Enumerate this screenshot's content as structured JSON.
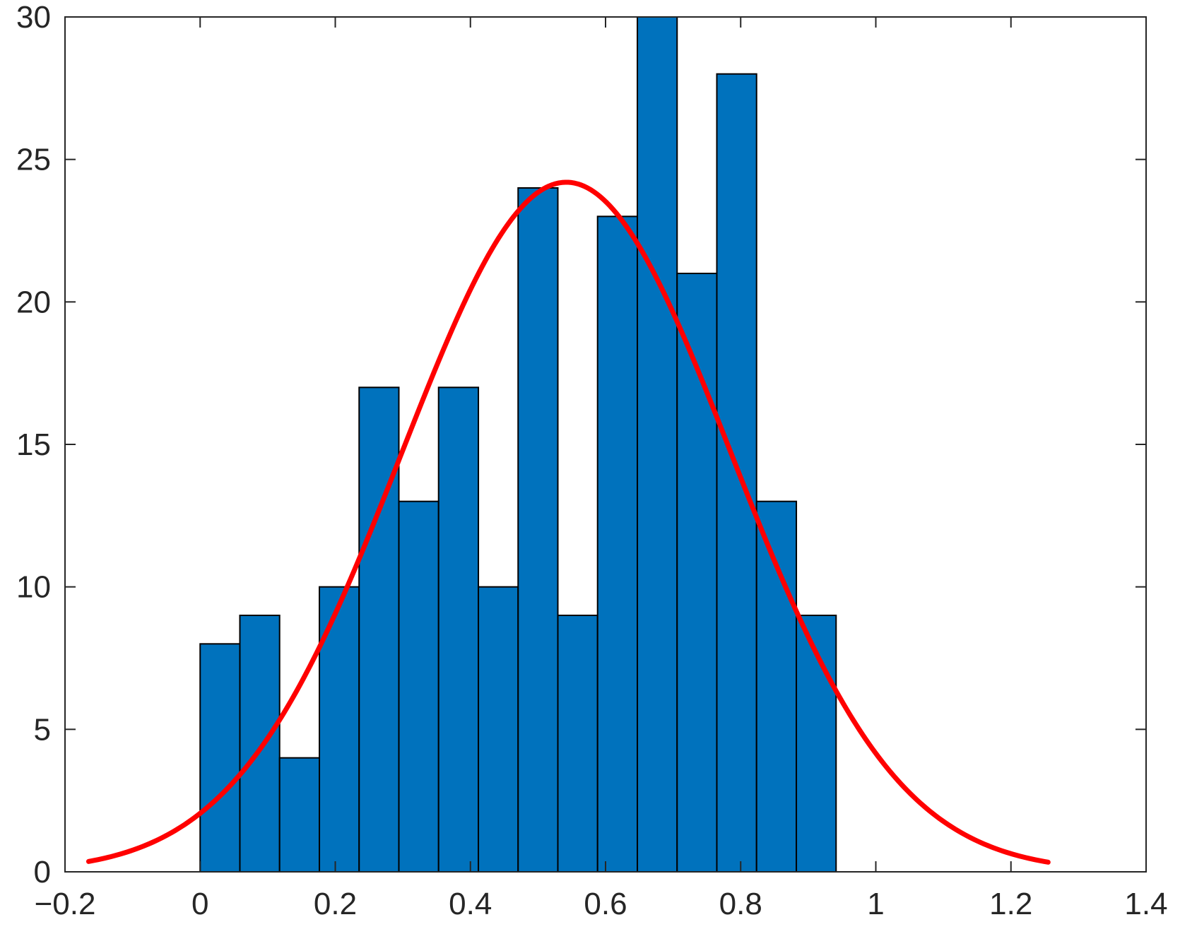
{
  "chart_data": {
    "type": "bar",
    "subtype": "histogram-with-fitted-normal-curve",
    "title": "",
    "xlabel": "",
    "ylabel": "",
    "xlim": [
      -0.2,
      1.4
    ],
    "ylim": [
      0,
      30
    ],
    "grid": false,
    "xticks": [
      -0.2,
      0,
      0.2,
      0.4,
      0.6,
      0.8,
      1,
      1.2,
      1.4
    ],
    "xtick_labels": [
      "−0.2",
      "0",
      "0.2",
      "0.4",
      "0.6",
      "0.8",
      "1",
      "1.2",
      "1.4"
    ],
    "yticks": [
      0,
      5,
      10,
      15,
      20,
      25,
      30
    ],
    "ytick_labels": [
      "0",
      "5",
      "10",
      "15",
      "20",
      "25",
      "30"
    ],
    "bin_edges": [
      0,
      0.0588,
      0.1176,
      0.1765,
      0.2353,
      0.2941,
      0.3529,
      0.4118,
      0.4706,
      0.5294,
      0.5882,
      0.6471,
      0.7059,
      0.7647,
      0.8235,
      0.8824,
      0.9412
    ],
    "counts": [
      8,
      9,
      4,
      10,
      17,
      13,
      17,
      10,
      24,
      9,
      23,
      30,
      21,
      28,
      13,
      9
    ],
    "fit_curve": {
      "distribution": "normal",
      "mean": 0.542,
      "std": 0.244,
      "peak": 24.2,
      "x_range": [
        -0.165,
        1.255
      ]
    },
    "colors": {
      "bar_fill": "#0072BD",
      "bar_edge": "#000000",
      "curve": "#FF0000",
      "axis": "#262626"
    }
  }
}
